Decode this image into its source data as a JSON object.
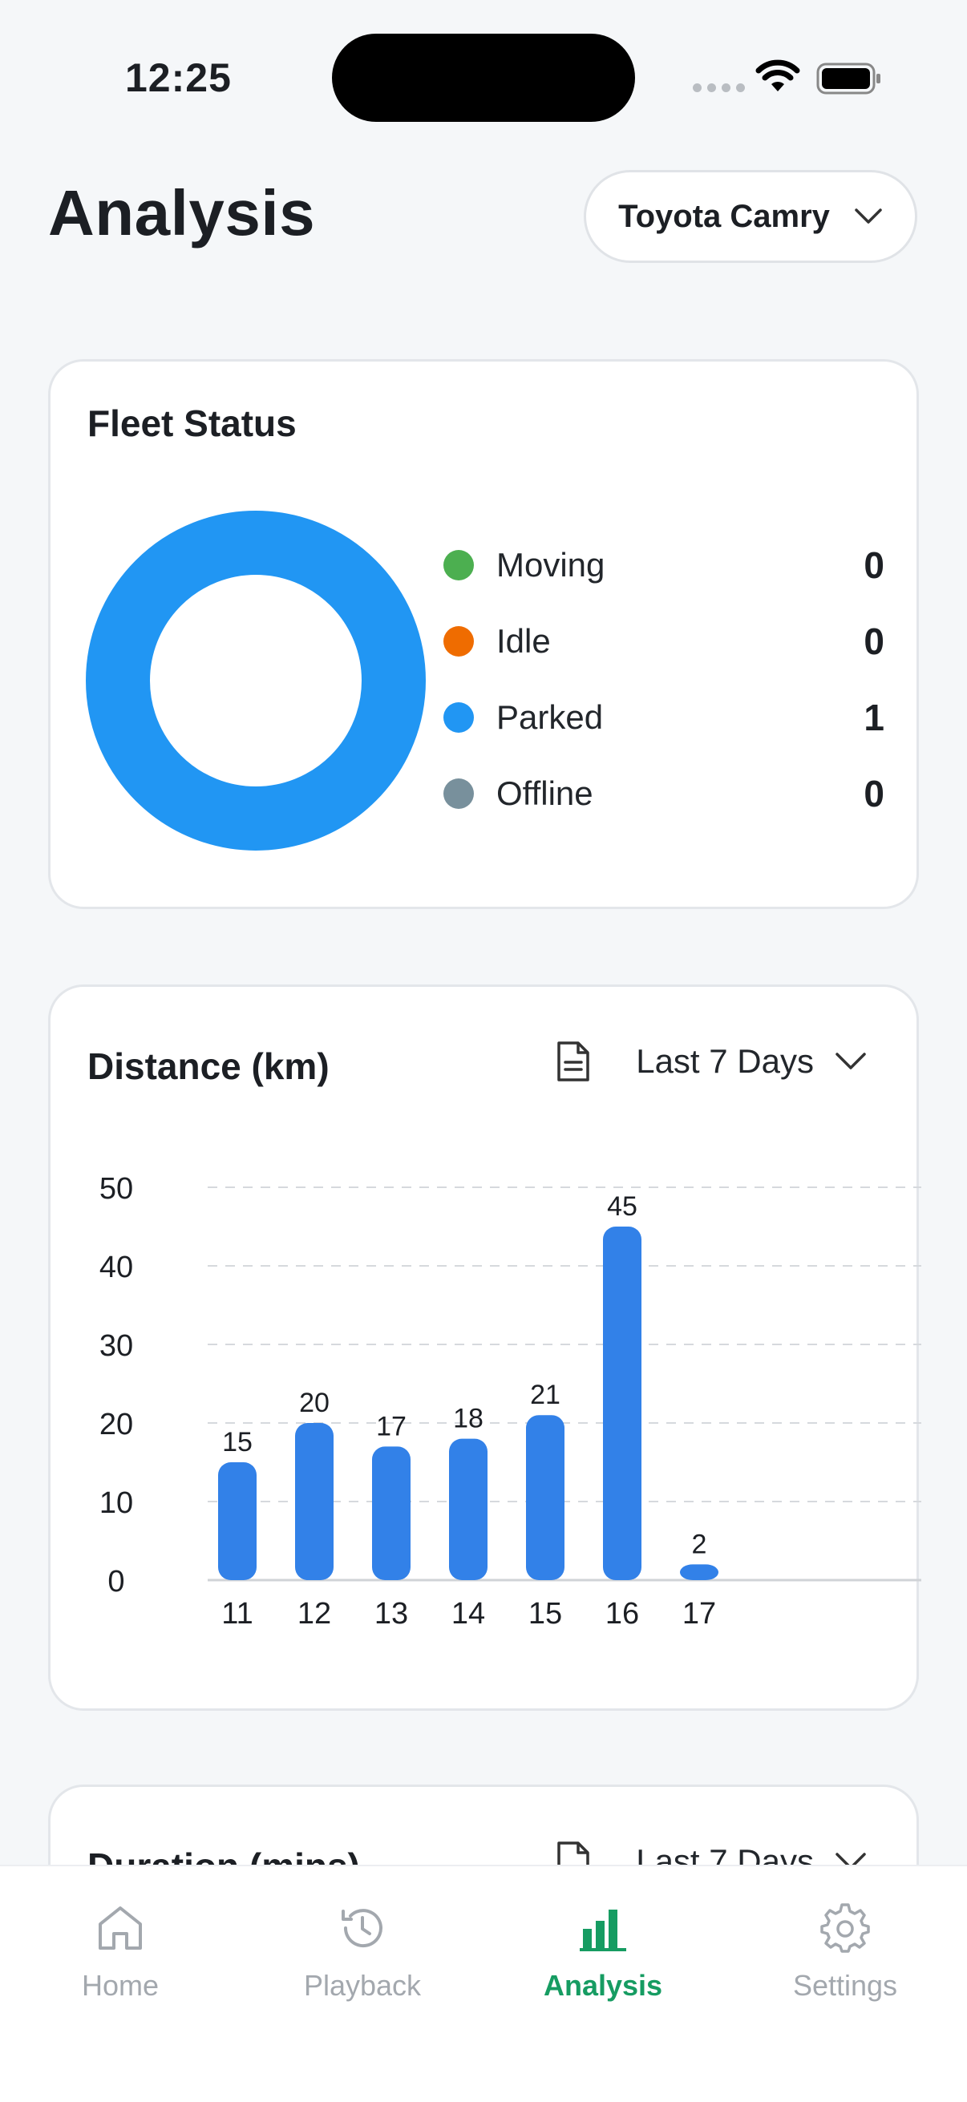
{
  "status_bar": {
    "time": "12:25"
  },
  "header": {
    "title": "Analysis",
    "vehicle": "Toyota Camry"
  },
  "fleet_status": {
    "title": "Fleet Status",
    "items": [
      {
        "label": "Moving",
        "value": "0",
        "color": "#4caf50"
      },
      {
        "label": "Idle",
        "value": "0",
        "color": "#ef6c00"
      },
      {
        "label": "Parked",
        "value": "1",
        "color": "#2196f3"
      },
      {
        "label": "Offline",
        "value": "0",
        "color": "#78909c"
      }
    ]
  },
  "distance": {
    "title": "Distance (km)",
    "range": "Last 7 Days"
  },
  "duration": {
    "title": "Duration (mins)",
    "range": "Last 7 Days"
  },
  "chart_data": {
    "type": "bar",
    "categories": [
      "11",
      "12",
      "13",
      "14",
      "15",
      "16",
      "17"
    ],
    "values": [
      15,
      20,
      17,
      18,
      21,
      45,
      2
    ],
    "title": "Distance (km)",
    "ylim": [
      0,
      50
    ],
    "yticks": [
      0,
      10,
      20,
      30,
      40,
      50
    ],
    "grid": true,
    "bar_color": "#3281e8"
  },
  "tabs": [
    {
      "label": "Home",
      "icon": "home-icon",
      "active": false
    },
    {
      "label": "Playback",
      "icon": "history-icon",
      "active": false
    },
    {
      "label": "Analysis",
      "icon": "bar-chart-icon",
      "active": true
    },
    {
      "label": "Settings",
      "icon": "gear-icon",
      "active": false
    }
  ]
}
